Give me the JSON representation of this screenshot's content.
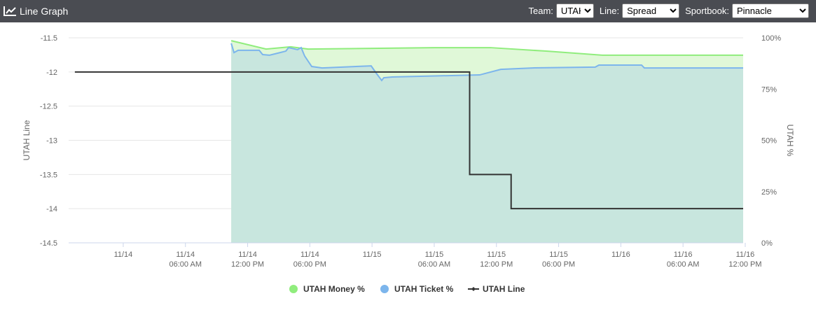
{
  "header": {
    "title": "Line Graph",
    "team_label": "Team:",
    "team": "UTAH",
    "line_label": "Line:",
    "line": "Spread",
    "sportsbook_label": "Sportbook:",
    "sportsbook": "Pinnacle"
  },
  "chart_data": {
    "type": "line",
    "y_label": "UTAH Line",
    "y2_label": "UTAH %",
    "xlim": [
      "11/13 06:44 PM",
      "11/16 11:48 AM"
    ],
    "xticks": [
      {
        "value": "11/14 12:00 AM",
        "label": "11/14"
      },
      "11/14 06:00 AM",
      "11/14 12:00 PM",
      "11/14 06:00 PM",
      {
        "value": "11/15 12:00 AM",
        "label": "11/15"
      },
      "11/15 06:00 AM",
      "11/15 12:00 PM",
      "11/15 06:00 PM",
      {
        "value": "11/16 12:00 AM",
        "label": "11/16"
      },
      "11/16 06:00 AM",
      "11/16 12:00 PM"
    ],
    "ylim": [
      -14.5,
      -11.5
    ],
    "yticks": [
      -11.5,
      -12,
      -12.5,
      -13,
      -13.5,
      -14,
      -14.5
    ],
    "y2lim": [
      0,
      100
    ],
    "y2ticks": [
      {
        "value": 100,
        "label": "100%"
      },
      {
        "value": 75,
        "label": "75%"
      },
      {
        "value": 50,
        "label": "50%"
      },
      {
        "value": 25,
        "label": "25%"
      },
      {
        "value": 0,
        "label": "0%"
      }
    ],
    "grid": true,
    "legend": "bottom",
    "series": [
      {
        "name": "UTAH Money %",
        "color": "#90ed7d",
        "area": "#e0f8d8",
        "axis": "y2",
        "x": [
          "11/14 10:25 AM",
          "11/14 01:47 PM",
          "11/14 04:09 PM",
          "11/14 05:50 PM",
          "11/15 06:00 AM",
          "11/15 11:24 AM",
          "11/15 04:48 PM",
          "11/15 10:13 PM",
          "11/16 11:48 AM"
        ],
        "values": [
          98.6,
          94.5,
          95.6,
          94.5,
          95.2,
          95.2,
          93.5,
          91.5,
          91.5
        ]
      },
      {
        "name": "UTAH Ticket %",
        "color": "#7cb5ec",
        "area": "#c8e6de",
        "axis": "y2",
        "x": [
          "11/14 10:25 AM",
          "11/14 10:41 AM",
          "11/14 11:05 AM",
          "11/14 01:07 PM",
          "11/14 01:27 PM",
          "11/14 02:07 PM",
          "11/14 03:08 PM",
          "11/14 03:41 PM",
          "11/14 03:57 PM",
          "11/14 04:49 PM",
          "11/14 05:10 PM",
          "11/14 05:30 PM",
          "11/14 06:11 PM",
          "11/14 07:11 PM",
          "11/14 11:55 PM",
          "11/15 12:23 AM",
          "11/15 12:56 AM",
          "11/15 01:08 AM",
          "11/15 01:57 AM",
          "11/15 10:23 AM",
          "11/15 12:25 PM",
          "11/15 03:28 PM",
          "11/15 09:32 PM",
          "11/15 09:53 PM",
          "11/16 02:00 AM",
          "11/16 02:16 AM",
          "11/16 11:48 AM"
        ],
        "values": [
          97.3,
          92.8,
          93.9,
          93.9,
          91.8,
          91.5,
          92.8,
          93.5,
          95.2,
          94.2,
          95.2,
          91.1,
          86.0,
          85.3,
          86.3,
          82.9,
          79.2,
          80.5,
          80.9,
          81.9,
          84.6,
          85.3,
          85.7,
          86.7,
          86.7,
          85.3,
          85.3
        ]
      },
      {
        "name": "UTAH Line",
        "color": "#333333",
        "axis": "y",
        "x": [
          "11/13 07:20 PM",
          "11/15 09:25 AM",
          "11/15 09:25 AM",
          "11/15 01:25 PM",
          "11/15 01:25 PM",
          "11/16 11:48 AM"
        ],
        "values": [
          -12,
          -12,
          -13.5,
          -13.5,
          -14,
          -14
        ]
      }
    ]
  }
}
